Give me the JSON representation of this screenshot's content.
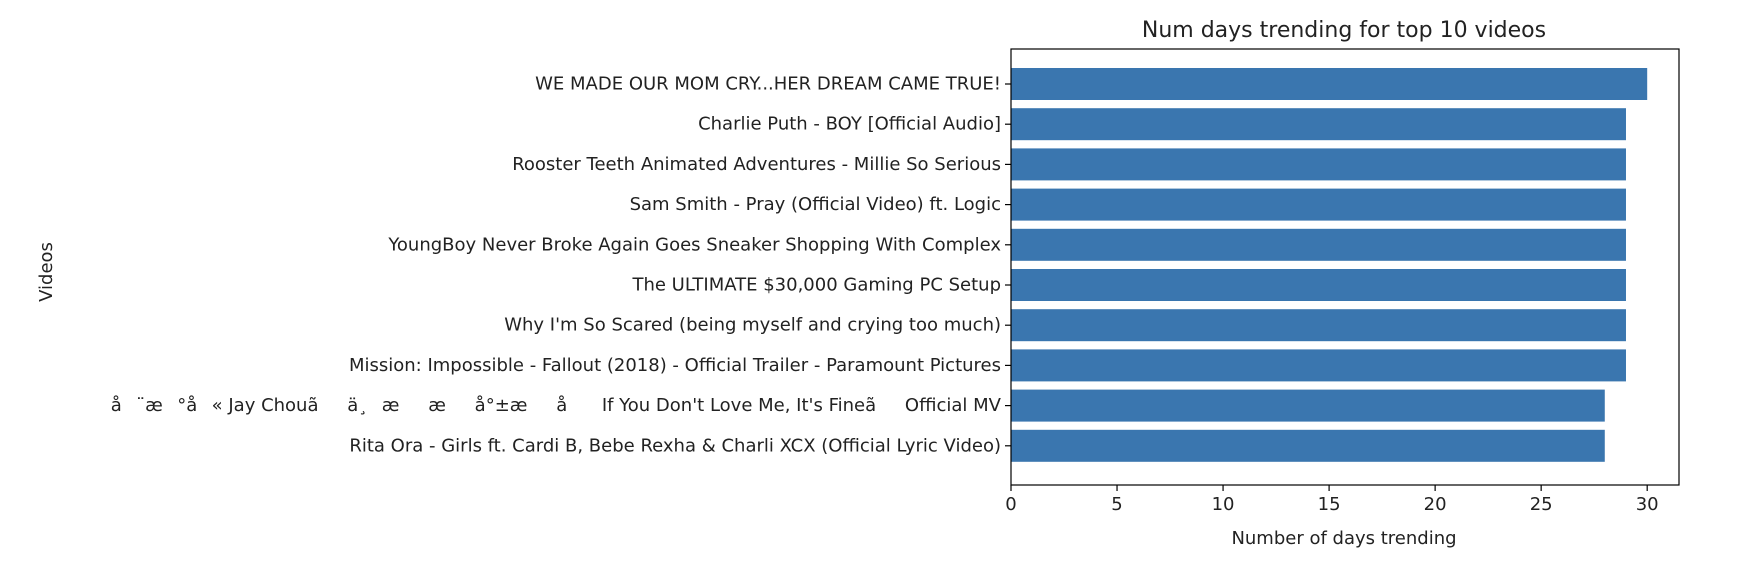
{
  "chart_data": {
    "type": "bar",
    "orientation": "horizontal",
    "title": "Num days trending for top 10 videos",
    "xlabel": "Number of days trending",
    "ylabel": "Videos",
    "xlim": [
      0,
      31.5
    ],
    "xticks": [
      0,
      5,
      10,
      15,
      20,
      25,
      30
    ],
    "grid": false,
    "bar_color": "#3a76af",
    "categories": [
      "WE MADE OUR MOM CRY...HER DREAM CAME TRUE!",
      "Charlie Puth - BOY [Official Audio]",
      "Rooster Teeth Animated Adventures - Millie So Serious",
      "Sam Smith - Pray (Official Video) ft. Logic",
      "YoungBoy Never Broke Again Goes Sneaker Shopping With Complex",
      "The ULTIMATE $30,000 Gaming PC Setup",
      "Why I'm So Scared (being myself and crying too much)",
      "Mission: Impossible - Fallout (2018) - Official Trailer - Paramount Pictures",
      "å¨æ°å« Jay Chouãä¸ææå°±æå If You Don't Love Me, It's FineãOfficial MV",
      "Rita Ora - Girls ft. Cardi B, Bebe Rexha & Charli XCX (Official Lyric Video)"
    ],
    "values": [
      30,
      29,
      29,
      29,
      29,
      29,
      29,
      29,
      28,
      28
    ]
  }
}
